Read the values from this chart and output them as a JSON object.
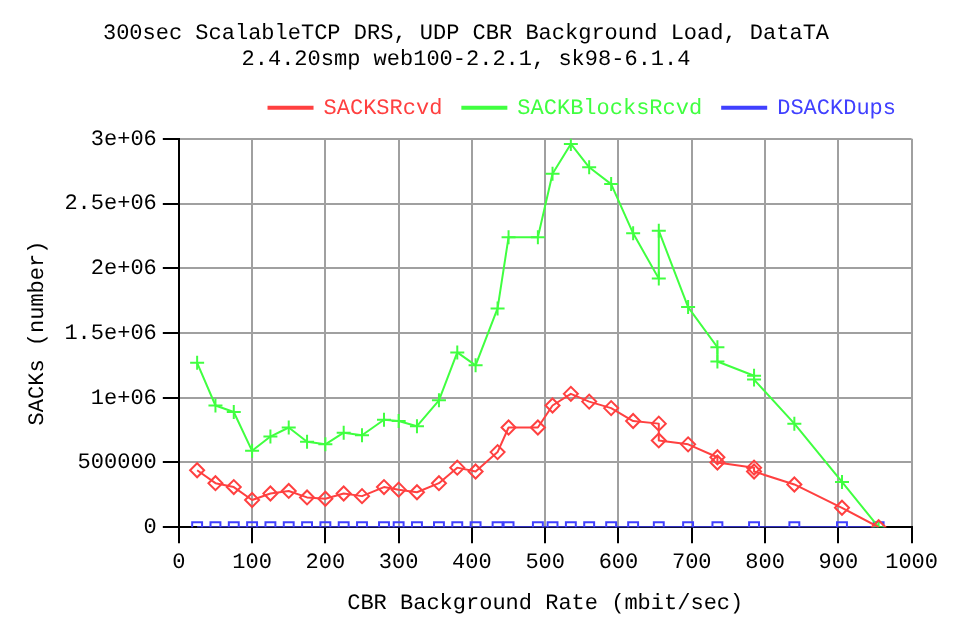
{
  "chart_data": {
    "type": "line",
    "title": "300sec ScalableTCP DRS, UDP CBR Background Load, DataTA",
    "subtitle": "2.4.20smp web100-2.2.1, sk98-6.1.4",
    "xlabel": "CBR Background Rate (mbit/sec)",
    "ylabel": "SACKs (number)",
    "xlim": [
      0,
      1000
    ],
    "xticks": [
      0,
      100,
      200,
      300,
      400,
      500,
      600,
      700,
      800,
      900,
      1000
    ],
    "ylim": [
      0,
      3000000
    ],
    "yticks": [
      0,
      500000,
      {
        "value": 1000000,
        "label": "1e+06"
      },
      {
        "value": 1500000,
        "label": "1.5e+06"
      },
      {
        "value": 2000000,
        "label": "2e+06"
      },
      {
        "value": 2500000,
        "label": "2.5e+06"
      },
      {
        "value": 3000000,
        "label": "3e+06"
      }
    ],
    "grid": true,
    "legend": "top right",
    "line_style": "solid",
    "series": [
      {
        "name": "SACKSRcvd",
        "color": "#ff4040",
        "marker": "diamond",
        "x": [
          25,
          50,
          75,
          100,
          125,
          150,
          175,
          200,
          225,
          250,
          280,
          300,
          325,
          355,
          380,
          405,
          435,
          450,
          490,
          510,
          535,
          560,
          590,
          620,
          655,
          655,
          695,
          735,
          735,
          785,
          785,
          840,
          905,
          955
        ],
        "values": [
          440000,
          340000,
          310000,
          210000,
          260000,
          280000,
          230000,
          220000,
          260000,
          240000,
          310000,
          290000,
          270000,
          340000,
          460000,
          430000,
          580000,
          770000,
          770000,
          940000,
          1030000,
          970000,
          920000,
          820000,
          800000,
          670000,
          640000,
          540000,
          500000,
          460000,
          430000,
          330000,
          150000,
          0
        ]
      },
      {
        "name": "SACKBlocksRcvd",
        "color": "#40ff40",
        "marker": "cross",
        "x": [
          25,
          50,
          75,
          100,
          125,
          150,
          175,
          200,
          225,
          250,
          280,
          300,
          325,
          355,
          380,
          405,
          435,
          450,
          490,
          510,
          535,
          560,
          590,
          620,
          655,
          655,
          695,
          735,
          735,
          785,
          785,
          840,
          905,
          955
        ],
        "values": [
          1270000,
          940000,
          890000,
          590000,
          700000,
          770000,
          660000,
          640000,
          730000,
          710000,
          830000,
          820000,
          780000,
          980000,
          1350000,
          1250000,
          1690000,
          2240000,
          2240000,
          2730000,
          2960000,
          2780000,
          2650000,
          2270000,
          1920000,
          2290000,
          1700000,
          1390000,
          1280000,
          1170000,
          1140000,
          800000,
          350000,
          0
        ]
      },
      {
        "name": "DSACKDups",
        "color": "#4040ff",
        "marker": "square",
        "x": [
          25,
          50,
          75,
          100,
          125,
          150,
          175,
          200,
          225,
          250,
          280,
          300,
          325,
          355,
          380,
          405,
          435,
          450,
          490,
          510,
          535,
          560,
          590,
          620,
          655,
          695,
          735,
          785,
          840,
          905,
          955
        ],
        "values": [
          0,
          0,
          0,
          0,
          0,
          0,
          0,
          0,
          0,
          0,
          0,
          0,
          0,
          0,
          0,
          0,
          0,
          0,
          0,
          0,
          0,
          0,
          0,
          0,
          0,
          0,
          0,
          0,
          0,
          0,
          0
        ]
      }
    ]
  }
}
